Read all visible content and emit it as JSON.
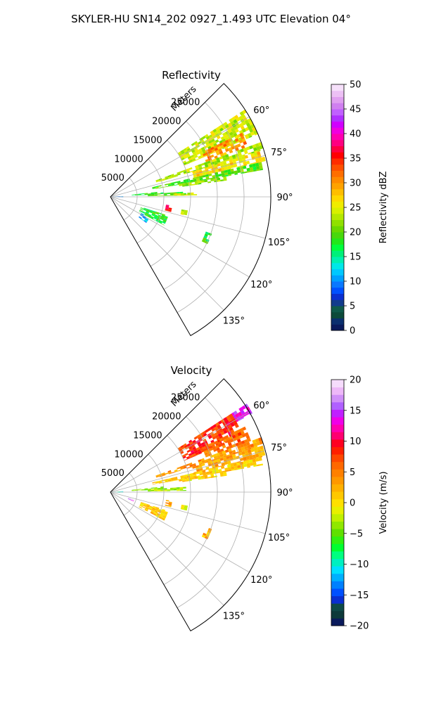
{
  "figure": {
    "title": "SKYLER-HU  SN14_202  0927_1.493 UTC Elevation 04°"
  },
  "chart_data": [
    {
      "type": "heatmap",
      "projection": "polar-sector",
      "title": "Reflectivity",
      "radial_label": "Meters",
      "radial_ticks": [
        "5000",
        "10000",
        "15000",
        "20000",
        "25000"
      ],
      "radial_tick_values": [
        5000,
        10000,
        15000,
        20000,
        25000
      ],
      "max_range_m": 30000,
      "azimuth_range_deg": [
        45,
        150
      ],
      "azimuth_ticks": [
        "60°",
        "75°",
        "90°",
        "105°",
        "120°",
        "135°"
      ],
      "azimuth_tick_values": [
        60,
        75,
        90,
        105,
        120,
        135
      ],
      "grid": true,
      "colorbar": {
        "label": "Reflectivity dBZ",
        "range": [
          0,
          50
        ],
        "ticks": [
          "0",
          "5",
          "10",
          "15",
          "20",
          "25",
          "30",
          "35",
          "40",
          "45",
          "50"
        ],
        "tick_values": [
          0,
          5,
          10,
          15,
          20,
          25,
          30,
          35,
          40,
          45,
          50
        ],
        "colors": [
          "#0a1a5c",
          "#0b2f6e",
          "#0d4a3a",
          "#0f5a4a",
          "#123c8c",
          "#0a2fd0",
          "#0050ff",
          "#0a78ff",
          "#00a0ff",
          "#00c8ff",
          "#00e8e8",
          "#00f0b0",
          "#00f07a",
          "#00ff3c",
          "#22e81a",
          "#48d80c",
          "#6ad800",
          "#90e000",
          "#b4e800",
          "#d8f000",
          "#f0ec00",
          "#ffd800",
          "#ffbe00",
          "#ffa200",
          "#ff8a00",
          "#ff6e00",
          "#ff5000",
          "#ff2c00",
          "#ff0000",
          "#ff0040",
          "#ff0080",
          "#ff00b0",
          "#f000e0",
          "#d000ff",
          "#b030ff",
          "#c060ff",
          "#d080f0",
          "#e0a0f0",
          "#ecc0f4",
          "#f6e0fa"
        ]
      },
      "echo_sectors": [
        {
          "az": [
            57,
            67
          ],
          "r": [
            15000,
            30000
          ],
          "level": 24
        },
        {
          "az": [
            64,
            70
          ],
          "r": [
            19000,
            27000
          ],
          "level": 30
        },
        {
          "az": [
            70,
            73
          ],
          "r": [
            9000,
            29500
          ],
          "level": 23
        },
        {
          "az": [
            73,
            77
          ],
          "r": [
            16000,
            29500
          ],
          "level": 27
        },
        {
          "az": [
            77,
            80
          ],
          "r": [
            8000,
            29000
          ],
          "level": 20
        },
        {
          "az": [
            80,
            82
          ],
          "r": [
            13000,
            22000
          ],
          "level": 22
        },
        {
          "az": [
            84,
            87
          ],
          "r": [
            4000,
            10000
          ],
          "level": 18
        },
        {
          "az": [
            86,
            89
          ],
          "r": [
            7000,
            14000
          ],
          "level": 20
        },
        {
          "az": [
            87,
            89
          ],
          "r": [
            12000,
            16000
          ],
          "level": 24
        },
        {
          "az": [
            98,
            104
          ],
          "r": [
            10500,
            11500
          ],
          "level": 36
        },
        {
          "az": [
            100,
            104
          ],
          "r": [
            13500,
            14500
          ],
          "level": 24
        },
        {
          "az": [
            110,
            116
          ],
          "r": [
            19000,
            20000
          ],
          "level": 18
        },
        {
          "az": [
            86,
            93
          ],
          "r": [
            0,
            2000
          ],
          "level": 10
        },
        {
          "az": [
            118,
            126
          ],
          "r": [
            6500,
            8000
          ],
          "level": 10
        },
        {
          "az": [
            108,
            118
          ],
          "r": [
            6000,
            11000
          ],
          "level": 18
        }
      ]
    },
    {
      "type": "heatmap",
      "projection": "polar-sector",
      "title": "Velocity",
      "radial_label": "Meters",
      "radial_ticks": [
        "5000",
        "10000",
        "15000",
        "20000",
        "25000"
      ],
      "radial_tick_values": [
        5000,
        10000,
        15000,
        20000,
        25000
      ],
      "max_range_m": 30000,
      "azimuth_range_deg": [
        45,
        150
      ],
      "azimuth_ticks": [
        "60°",
        "75°",
        "90°",
        "105°",
        "120°",
        "135°"
      ],
      "azimuth_tick_values": [
        60,
        75,
        90,
        105,
        120,
        135
      ],
      "grid": true,
      "colorbar": {
        "label": "Velocity (m/s)",
        "range": [
          -20,
          20
        ],
        "ticks": [
          "−20",
          "−15",
          "−10",
          "−5",
          "0",
          "5",
          "10",
          "15",
          "20"
        ],
        "tick_values": [
          -20,
          -15,
          -10,
          -5,
          0,
          5,
          10,
          15,
          20
        ],
        "colors": [
          "#0a1a5c",
          "#0d3a3a",
          "#0e4a48",
          "#0a2fd0",
          "#0050ff",
          "#0080ff",
          "#00b0ff",
          "#00e0ff",
          "#00f0c0",
          "#00ff80",
          "#00ff30",
          "#30f010",
          "#60e000",
          "#90e800",
          "#c0f000",
          "#e8f000",
          "#ffe000",
          "#ffc800",
          "#ffb000",
          "#ff9800",
          "#ff8000",
          "#ff6800",
          "#ff4800",
          "#ff2000",
          "#ff0020",
          "#ff0070",
          "#ff00b0",
          "#f000e8",
          "#c020ff",
          "#b060ff",
          "#d090f8",
          "#eeb8f8",
          "#f6dcfc"
        ]
      },
      "echo_sectors": [
        {
          "az": [
            57,
            61
          ],
          "r": [
            25000,
            30000
          ],
          "level": 14
        },
        {
          "az": [
            57,
            67
          ],
          "r": [
            15000,
            27000
          ],
          "level": 8
        },
        {
          "az": [
            64,
            70
          ],
          "r": [
            19000,
            28000
          ],
          "level": 6
        },
        {
          "az": [
            70,
            73
          ],
          "r": [
            9000,
            29500
          ],
          "level": 4
        },
        {
          "az": [
            73,
            77
          ],
          "r": [
            16000,
            29500
          ],
          "level": 3
        },
        {
          "az": [
            77,
            80
          ],
          "r": [
            8000,
            29000
          ],
          "level": 1
        },
        {
          "az": [
            80,
            82
          ],
          "r": [
            13000,
            22000
          ],
          "level": 0
        },
        {
          "az": [
            84,
            87
          ],
          "r": [
            4000,
            10000
          ],
          "level": -4
        },
        {
          "az": [
            86,
            89
          ],
          "r": [
            7000,
            14000
          ],
          "level": -3
        },
        {
          "az": [
            98,
            104
          ],
          "r": [
            10500,
            11500
          ],
          "level": 3
        },
        {
          "az": [
            100,
            104
          ],
          "r": [
            13500,
            14500
          ],
          "level": -2
        },
        {
          "az": [
            108,
            118
          ],
          "r": [
            6000,
            11000
          ],
          "level": 1
        },
        {
          "az": [
            110,
            116
          ],
          "r": [
            19000,
            20000
          ],
          "level": 2
        },
        {
          "az": [
            86,
            93
          ],
          "r": [
            0,
            2000
          ],
          "level": -9
        },
        {
          "az": [
            108,
            112
          ],
          "r": [
            3500,
            4500
          ],
          "level": 16
        }
      ]
    }
  ]
}
